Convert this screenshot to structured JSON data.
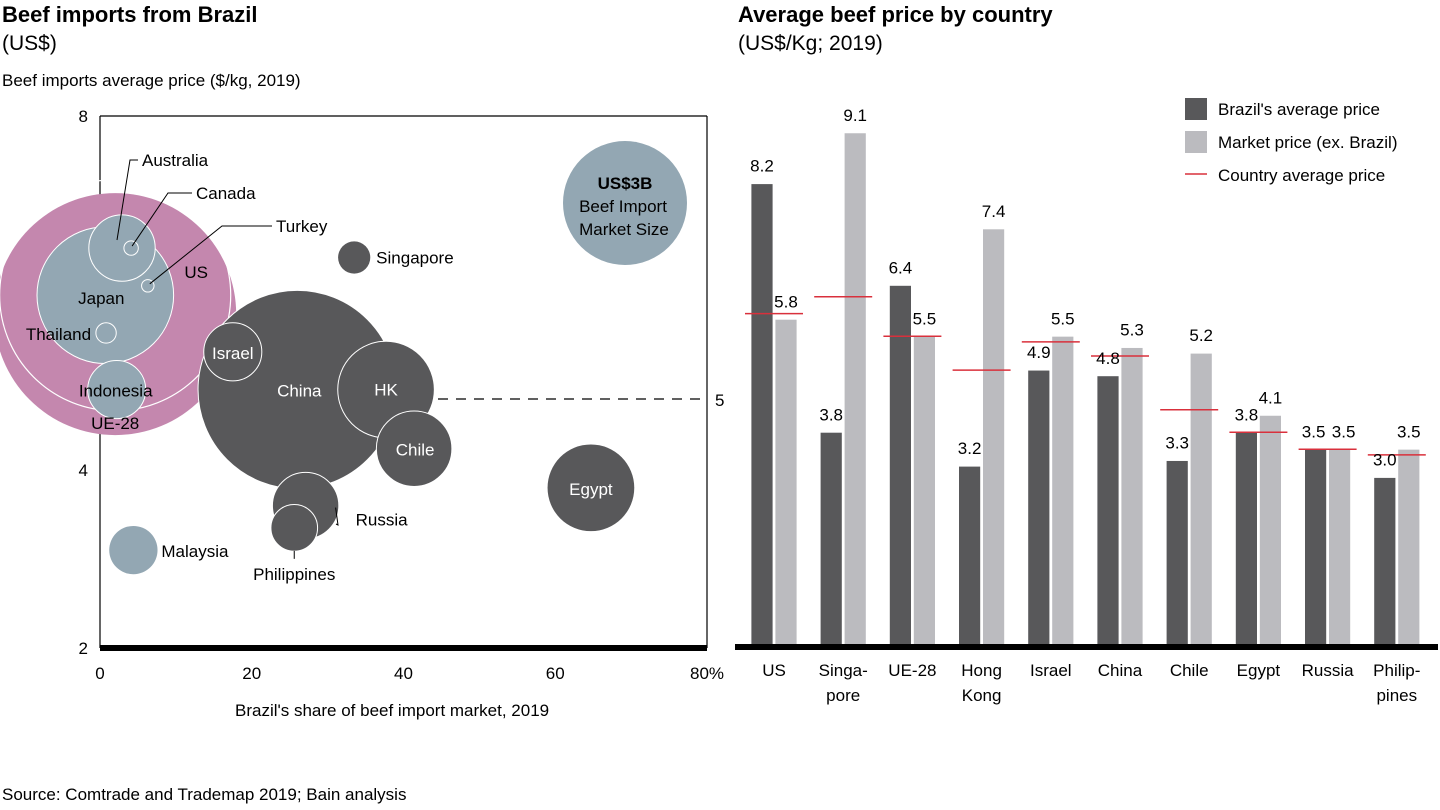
{
  "left_panel": {
    "title": "Beef imports from Brazil",
    "subtitle": "(US$)",
    "ylabel": "Beef imports average price ($/kg, 2019)",
    "xlabel": "Brazil's share of beef import market, 2019"
  },
  "right_panel": {
    "title": "Average beef price by country",
    "subtitle": "(US$/Kg; 2019)"
  },
  "source": "Source: Comtrade and Trademap 2019; Bain analysis",
  "colors": {
    "pink_bubble": "#c487ae",
    "blue_bubble": "#93a7b3",
    "dark_bubble": "#58585a",
    "brazil_bar": "#58585a",
    "market_bar": "#bbbbbf",
    "country_avg_line": "#d9303c",
    "axis": "#000000"
  },
  "chart_data": [
    {
      "type": "scatter",
      "subtype": "bubble",
      "title": "Beef imports from Brazil (US$)",
      "xlabel": "Brazil's share of beef import market, 2019",
      "ylabel": "Beef imports average price ($/kg, 2019)",
      "xlim": [
        0,
        80
      ],
      "ylim": [
        2,
        8
      ],
      "x_ticks": [
        "0",
        "20",
        "40",
        "60",
        "80%"
      ],
      "y_ticks": [
        "2",
        "4",
        "8"
      ],
      "reference_line": {
        "y": 5,
        "label": "5",
        "style": "dashed"
      },
      "size_legend": {
        "value_label": "US$3B",
        "text_line1": "Beef Import",
        "text_line2": "Market Size",
        "market_size_busd": 3
      },
      "points": [
        {
          "name": "UE-28",
          "x": 2.0,
          "y": 5.9,
          "size_busd": 11.3,
          "group": "pink",
          "label_inside": true
        },
        {
          "name": "US",
          "x": 2.0,
          "y": 6.1,
          "size_busd": 10.3,
          "group": "outline",
          "label_inside": true
        },
        {
          "name": "Japan",
          "x": 0.7,
          "y": 6.1,
          "size_busd": 3.6,
          "group": "blue",
          "label_inside": true
        },
        {
          "name": "Australia",
          "x": 2.9,
          "y": 6.6,
          "size_busd": 0.85,
          "group": "blue",
          "label_inside": false
        },
        {
          "name": "Canada",
          "x": 4.1,
          "y": 6.6,
          "size_busd": 0.04,
          "group": "blue",
          "label_inside": false
        },
        {
          "name": "Turkey",
          "x": 6.3,
          "y": 6.2,
          "size_busd": 0.03,
          "group": "blue",
          "label_inside": false
        },
        {
          "name": "Thailand",
          "x": 0.8,
          "y": 5.7,
          "size_busd": 0.08,
          "group": "blue",
          "label_inside": false
        },
        {
          "name": "Indonesia",
          "x": 2.2,
          "y": 5.1,
          "size_busd": 0.65,
          "group": "blue",
          "label_inside": true
        },
        {
          "name": "Israel",
          "x": 17.5,
          "y": 5.5,
          "size_busd": 0.65,
          "group": "dark",
          "label_inside": true
        },
        {
          "name": "China",
          "x": 26.0,
          "y": 5.1,
          "size_busd": 7.6,
          "group": "dark",
          "label_inside": true
        },
        {
          "name": "HK",
          "x": 37.7,
          "y": 5.1,
          "size_busd": 1.8,
          "group": "dark",
          "label_inside": true
        },
        {
          "name": "Chile",
          "x": 41.4,
          "y": 4.3,
          "size_busd": 1.1,
          "group": "dark",
          "label_inside": true
        },
        {
          "name": "Singapore",
          "x": 33.5,
          "y": 6.5,
          "size_busd": 0.2,
          "group": "dark",
          "label_inside": false
        },
        {
          "name": "Russia",
          "x": 27.1,
          "y": 3.6,
          "size_busd": 0.85,
          "group": "dark",
          "label_inside": false
        },
        {
          "name": "Philippines",
          "x": 25.6,
          "y": 3.35,
          "size_busd": 0.42,
          "group": "dark",
          "label_inside": false
        },
        {
          "name": "Egypt",
          "x": 64.7,
          "y": 3.8,
          "size_busd": 1.45,
          "group": "dark",
          "label_inside": true
        },
        {
          "name": "Malaysia",
          "x": 4.4,
          "y": 3.1,
          "size_busd": 0.45,
          "group": "blue",
          "label_inside": false
        }
      ]
    },
    {
      "type": "bar",
      "title": "Average beef price by country",
      "subtitle": "(US$/Kg; 2019)",
      "categories": [
        "US",
        "Singa-\npore",
        "UE-28",
        "Hong\nKong",
        "Israel",
        "China",
        "Chile",
        "Egypt",
        "Russia",
        "Philip-\npines"
      ],
      "ylim": [
        0,
        9.5
      ],
      "legend": {
        "placement": "top-right",
        "entries": [
          "Brazil's average price",
          "Market price (ex. Brazil)",
          "Country average price"
        ]
      },
      "series": [
        {
          "name": "Brazil's average price",
          "values": [
            8.2,
            3.8,
            6.4,
            3.2,
            4.9,
            4.8,
            3.3,
            3.8,
            3.5,
            3.0
          ]
        },
        {
          "name": "Market price (ex. Brazil)",
          "values": [
            5.8,
            9.1,
            5.5,
            7.4,
            5.5,
            5.3,
            5.2,
            4.1,
            3.5,
            3.5
          ]
        },
        {
          "name": "Country average price",
          "type": "line-marker",
          "values": [
            5.9,
            6.2,
            5.5,
            4.9,
            5.4,
            5.15,
            4.2,
            3.8,
            3.5,
            3.4
          ]
        }
      ]
    }
  ]
}
